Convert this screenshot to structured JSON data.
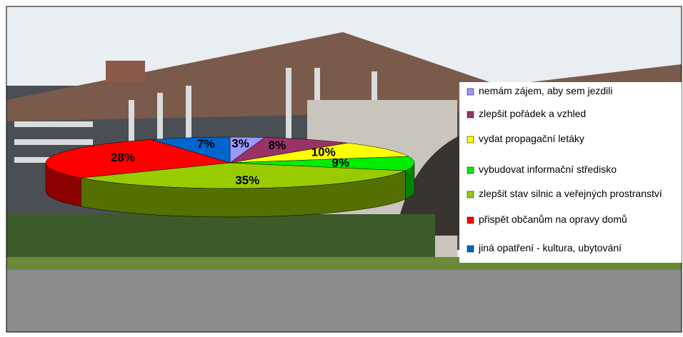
{
  "chart_data": {
    "type": "pie",
    "categories": [
      "nemám zájem, aby sem jezdili",
      "zlepšit pořádek a vzhled",
      "vydat propagační letáky",
      "vybudovat informační středisko",
      "zlepšit stav silnic a veřejných prostranství",
      "přispět občanům na opravy domů",
      "jiná opatření - kultura, ubytování"
    ],
    "values": [
      3,
      8,
      10,
      9,
      35,
      28,
      7
    ],
    "value_labels": [
      "3%",
      "8%",
      "10%",
      "9%",
      "35%",
      "28%",
      "7%"
    ],
    "colors": [
      "#9999ff",
      "#993366",
      "#ffff00",
      "#00ee00",
      "#99cc00",
      "#ff0000",
      "#0066cc"
    ],
    "legend": "right"
  }
}
